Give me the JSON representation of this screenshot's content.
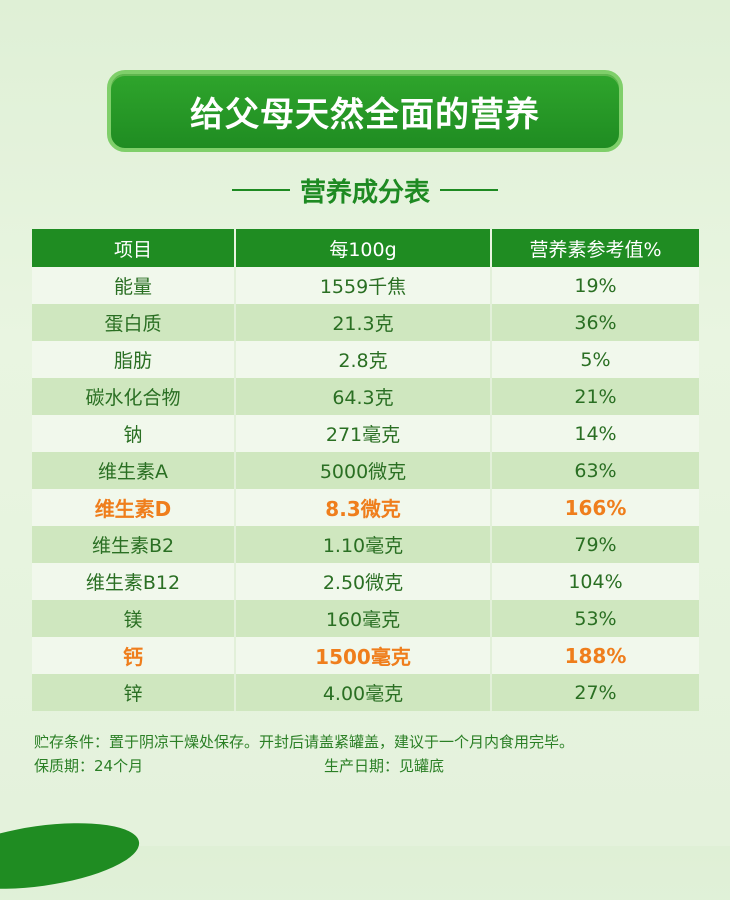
{
  "banner_title": "给父母天然全面的营养",
  "subtitle": "营养成分表",
  "table": {
    "headers": [
      "项目",
      "每100g",
      "营养素参考值%"
    ],
    "rows": [
      {
        "item": "能量",
        "per100g": "1559千焦",
        "nrv": "19%",
        "highlight": false
      },
      {
        "item": "蛋白质",
        "per100g": "21.3克",
        "nrv": "36%",
        "highlight": false
      },
      {
        "item": "脂肪",
        "per100g": "2.8克",
        "nrv": "5%",
        "highlight": false
      },
      {
        "item": "碳水化合物",
        "per100g": "64.3克",
        "nrv": "21%",
        "highlight": false
      },
      {
        "item": "钠",
        "per100g": "271毫克",
        "nrv": "14%",
        "highlight": false
      },
      {
        "item": "维生素A",
        "per100g": "5000微克",
        "nrv": "63%",
        "highlight": false
      },
      {
        "item": "维生素D",
        "per100g": "8.3微克",
        "nrv": "166%",
        "highlight": true
      },
      {
        "item": "维生素B2",
        "per100g": "1.10毫克",
        "nrv": "79%",
        "highlight": false
      },
      {
        "item": "维生素B12",
        "per100g": "2.50微克",
        "nrv": "104%",
        "highlight": false
      },
      {
        "item": "镁",
        "per100g": "160毫克",
        "nrv": "53%",
        "highlight": false
      },
      {
        "item": "钙",
        "per100g": "1500毫克",
        "nrv": "188%",
        "highlight": true
      },
      {
        "item": "锌",
        "per100g": "4.00毫克",
        "nrv": "27%",
        "highlight": false
      }
    ]
  },
  "storage_note": "贮存条件：置于阴凉干燥处保存。开封后请盖紧罐盖，建议于一个月内食用完毕。",
  "shelf_life": "保质期：24个月",
  "production_date": "生产日期：见罐底",
  "colors": {
    "brand_green": "#1f8c22",
    "highlight_orange": "#ef7e1c"
  }
}
